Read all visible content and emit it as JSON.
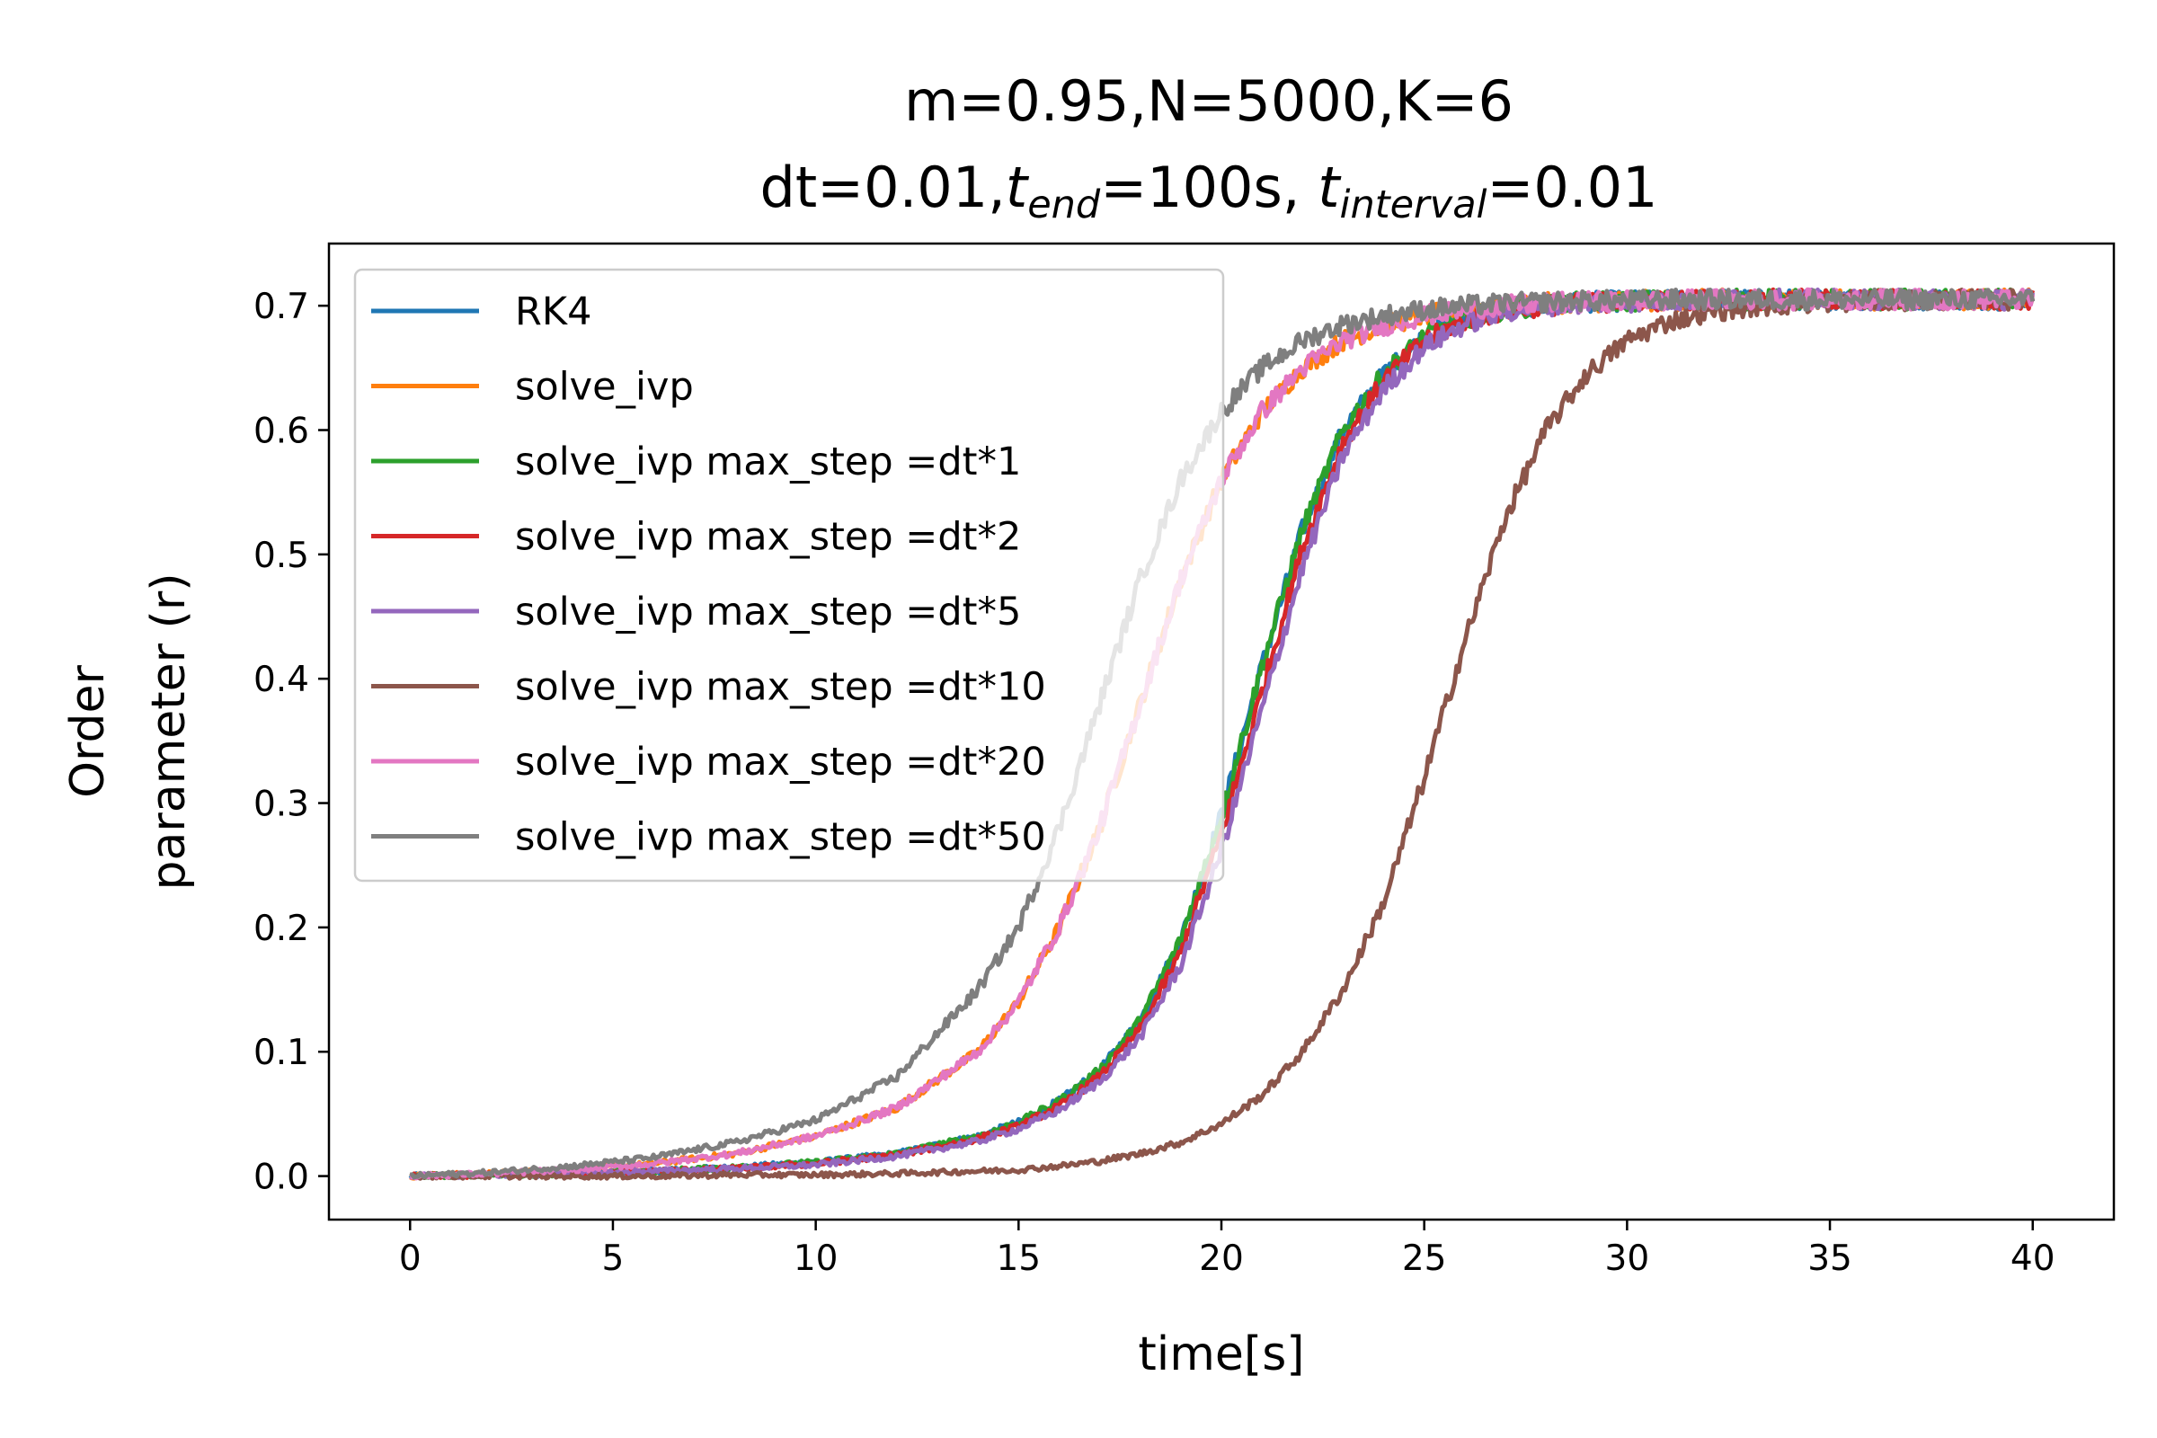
{
  "chart_data": {
    "type": "line",
    "title_line1": "m=0.95,N=5000,K=6",
    "title_line2": {
      "dt": "dt=0.01,",
      "t_end_base": "t",
      "t_end_sub": "end",
      "t_end_rest": "=100s, ",
      "t_interval_base": "t",
      "t_interval_sub": "interval",
      "t_interval_rest": "=0.01"
    },
    "xlabel": "time[s]",
    "ylabel_line1": "Order",
    "ylabel_line2": "parameter (r)",
    "xlim": [
      -2,
      42
    ],
    "ylim": [
      -0.035,
      0.75
    ],
    "xticks": [
      0,
      5,
      10,
      15,
      20,
      25,
      30,
      35,
      40
    ],
    "yticks": [
      0.0,
      0.1,
      0.2,
      0.3,
      0.4,
      0.5,
      0.6,
      0.7
    ],
    "ytick_labels": [
      "0.0",
      "0.1",
      "0.2",
      "0.3",
      "0.4",
      "0.5",
      "0.6",
      "0.7"
    ],
    "grid": false,
    "legend_position": "upper-left",
    "x": [
      0,
      2,
      4,
      6,
      8,
      10,
      12,
      14,
      15,
      16,
      17,
      18,
      19,
      20,
      21,
      22,
      23,
      24,
      25,
      26,
      27,
      28,
      29,
      30,
      31,
      32,
      33,
      34,
      35,
      36,
      38,
      40
    ],
    "series": [
      {
        "name": "RK4",
        "color": "#1f77b4",
        "values": [
          0.0,
          0.001,
          0.002,
          0.004,
          0.007,
          0.011,
          0.018,
          0.032,
          0.043,
          0.06,
          0.085,
          0.125,
          0.19,
          0.29,
          0.41,
          0.52,
          0.6,
          0.645,
          0.675,
          0.69,
          0.697,
          0.701,
          0.703,
          0.704,
          0.704,
          0.705,
          0.705,
          0.705,
          0.705,
          0.705,
          0.705,
          0.705
        ]
      },
      {
        "name": "solve_ivp",
        "color": "#ff7f0e",
        "values": [
          0.0,
          0.002,
          0.005,
          0.01,
          0.018,
          0.032,
          0.055,
          0.1,
          0.14,
          0.2,
          0.28,
          0.38,
          0.48,
          0.56,
          0.615,
          0.65,
          0.672,
          0.684,
          0.692,
          0.697,
          0.7,
          0.702,
          0.703,
          0.704,
          0.704,
          0.705,
          0.705,
          0.705,
          0.705,
          0.705,
          0.705,
          0.705
        ]
      },
      {
        "name": "solve_ivp max_step =dt*1",
        "color": "#2ca02c",
        "values": [
          0.0,
          0.001,
          0.002,
          0.004,
          0.007,
          0.011,
          0.018,
          0.032,
          0.043,
          0.06,
          0.085,
          0.125,
          0.19,
          0.29,
          0.41,
          0.52,
          0.6,
          0.645,
          0.675,
          0.69,
          0.697,
          0.701,
          0.703,
          0.704,
          0.704,
          0.705,
          0.705,
          0.705,
          0.705,
          0.705,
          0.705,
          0.705
        ]
      },
      {
        "name": "solve_ivp max_step =dt*2",
        "color": "#d62728",
        "values": [
          0.0,
          0.001,
          0.002,
          0.004,
          0.006,
          0.01,
          0.017,
          0.03,
          0.04,
          0.056,
          0.08,
          0.118,
          0.18,
          0.275,
          0.39,
          0.505,
          0.59,
          0.64,
          0.672,
          0.688,
          0.696,
          0.7,
          0.702,
          0.704,
          0.704,
          0.705,
          0.705,
          0.705,
          0.705,
          0.705,
          0.705,
          0.705
        ]
      },
      {
        "name": "solve_ivp max_step =dt*5",
        "color": "#9467bd",
        "values": [
          0.0,
          0.001,
          0.002,
          0.004,
          0.006,
          0.009,
          0.016,
          0.028,
          0.038,
          0.053,
          0.076,
          0.112,
          0.17,
          0.262,
          0.375,
          0.49,
          0.58,
          0.633,
          0.667,
          0.685,
          0.695,
          0.7,
          0.702,
          0.703,
          0.704,
          0.705,
          0.705,
          0.705,
          0.705,
          0.705,
          0.705,
          0.705
        ]
      },
      {
        "name": "solve_ivp max_step =dt*10",
        "color": "#8c564b",
        "values": [
          0.0,
          0.0,
          0.0,
          0.0,
          0.001,
          0.001,
          0.002,
          0.004,
          0.005,
          0.008,
          0.012,
          0.018,
          0.027,
          0.042,
          0.065,
          0.1,
          0.15,
          0.22,
          0.32,
          0.43,
          0.53,
          0.6,
          0.645,
          0.672,
          0.687,
          0.695,
          0.699,
          0.701,
          0.703,
          0.704,
          0.705,
          0.705
        ]
      },
      {
        "name": "solve_ivp max_step =dt*20",
        "color": "#e377c2",
        "values": [
          0.0,
          0.002,
          0.005,
          0.01,
          0.018,
          0.032,
          0.055,
          0.1,
          0.14,
          0.2,
          0.28,
          0.38,
          0.48,
          0.56,
          0.615,
          0.65,
          0.672,
          0.684,
          0.692,
          0.697,
          0.7,
          0.702,
          0.703,
          0.704,
          0.704,
          0.705,
          0.705,
          0.705,
          0.705,
          0.705,
          0.705,
          0.705
        ]
      },
      {
        "name": "solve_ivp max_step =dt*50",
        "color": "#7f7f7f",
        "values": [
          0.0,
          0.003,
          0.008,
          0.015,
          0.027,
          0.045,
          0.08,
          0.15,
          0.2,
          0.28,
          0.38,
          0.48,
          0.56,
          0.615,
          0.65,
          0.672,
          0.685,
          0.692,
          0.697,
          0.7,
          0.702,
          0.703,
          0.704,
          0.704,
          0.705,
          0.705,
          0.705,
          0.705,
          0.705,
          0.705,
          0.705,
          0.705
        ]
      }
    ]
  }
}
